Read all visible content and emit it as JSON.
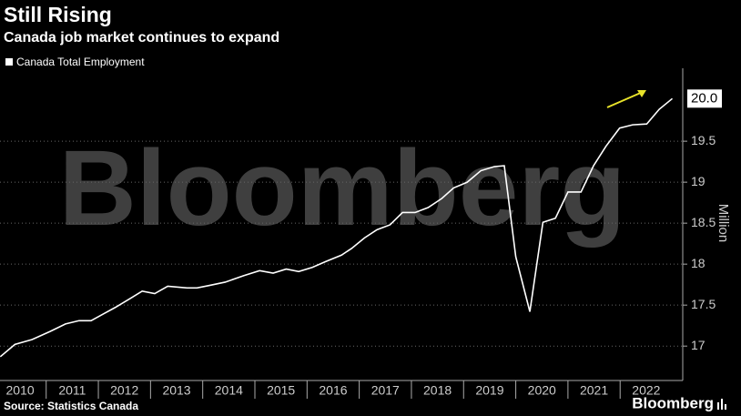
{
  "chart_data": {
    "type": "line",
    "title": "Still Rising",
    "subtitle": "Canada job market continues to expand",
    "y_label": "Million",
    "source": "Source: Statistics Canada",
    "watermark": "Bloomberg",
    "logo": "Bloomberg",
    "legend_position": "top-left",
    "grid": true,
    "xlim": [
      2010.115,
      2023.2
    ],
    "xticks": [
      2010,
      2011,
      2012,
      2013,
      2014,
      2015,
      2016,
      2017,
      2018,
      2019,
      2020,
      2021,
      2022
    ],
    "ylim": [
      16.58,
      20.39
    ],
    "yticks": [
      17.0,
      17.5,
      18.0,
      18.5,
      19.0,
      19.5
    ],
    "x": [
      2010.12,
      2010.4,
      2010.73,
      2011.08,
      2011.37,
      2011.63,
      2011.86,
      2012.09,
      2012.32,
      2012.61,
      2012.84,
      2013.08,
      2013.33,
      2013.7,
      2013.89,
      2014.13,
      2014.43,
      2014.79,
      2015.09,
      2015.35,
      2015.6,
      2015.84,
      2016.1,
      2016.35,
      2016.66,
      2016.85,
      2017.1,
      2017.34,
      2017.59,
      2017.83,
      2018.07,
      2018.32,
      2018.58,
      2018.81,
      2019.07,
      2019.33,
      2019.59,
      2019.78,
      2020.0,
      2020.27,
      2020.52,
      2020.76,
      2021.0,
      2021.25,
      2021.49,
      2021.73,
      2021.99,
      2022.24,
      2022.51,
      2022.75,
      2023.0
    ],
    "series": [
      {
        "name": "Canada Total Employment",
        "color": "#ffffff",
        "values": [
          16.87,
          17.02,
          17.08,
          17.18,
          17.27,
          17.31,
          17.31,
          17.39,
          17.47,
          17.58,
          17.67,
          17.64,
          17.73,
          17.71,
          17.71,
          17.74,
          17.78,
          17.86,
          17.92,
          17.89,
          17.94,
          17.91,
          17.96,
          18.03,
          18.11,
          18.19,
          18.32,
          18.42,
          18.48,
          18.63,
          18.63,
          18.69,
          18.8,
          18.93,
          19.0,
          19.14,
          19.19,
          19.2,
          18.09,
          17.42,
          18.51,
          18.56,
          18.88,
          18.88,
          19.2,
          19.44,
          19.66,
          19.7,
          19.71,
          19.89,
          20.02
        ],
        "value_labels": [
          null,
          null,
          null,
          null,
          null,
          null,
          null,
          null,
          null,
          null,
          null,
          null,
          null,
          null,
          null,
          null,
          null,
          null,
          null,
          null,
          null,
          null,
          null,
          null,
          null,
          null,
          null,
          null,
          null,
          null,
          null,
          null,
          null,
          null,
          null,
          null,
          null,
          null,
          null,
          null,
          null,
          null,
          null,
          null,
          null,
          null,
          null,
          null,
          null,
          null,
          "20.0"
        ]
      }
    ]
  }
}
